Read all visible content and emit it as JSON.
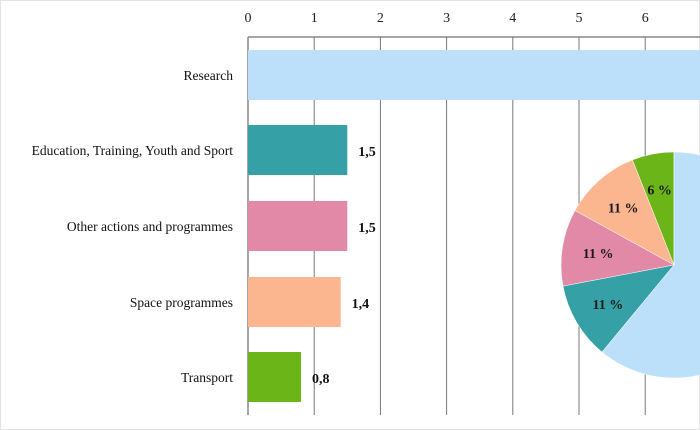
{
  "chart_data": {
    "type": "bar",
    "orientation": "horizontal",
    "title": "",
    "xlabel": "",
    "ylabel": "",
    "xlim": [
      0,
      6.8
    ],
    "x_ticks": [
      "0",
      "1",
      "2",
      "3",
      "4",
      "5",
      "6"
    ],
    "grid": true,
    "categories": [
      "Research",
      "Education, Training, Youth and Sport",
      "Other actions and programmes",
      "Space programmes",
      "Transport"
    ],
    "values": [
      null,
      1.5,
      1.5,
      1.4,
      0.8
    ],
    "value_labels": [
      "",
      "1,5",
      "1,5",
      "1,4",
      "0,8"
    ],
    "colors": [
      "#bde0fa",
      "#35a0a5",
      "#e289a8",
      "#fbb58f",
      "#6cb518"
    ],
    "inset_pie": {
      "type": "pie",
      "slices": [
        {
          "category": "Transport",
          "value": 6,
          "label": "6 %",
          "color": "#6cb518"
        },
        {
          "category": "Space programmes",
          "value": 11,
          "label": "11 %",
          "color": "#fbb58f"
        },
        {
          "category": "Other actions and programmes",
          "value": 11,
          "label": "11 %",
          "color": "#e289a8"
        },
        {
          "category": "Education, Training, Youth and Sport",
          "value": 11,
          "label": "11 %",
          "color": "#35a0a5"
        },
        {
          "category": "Research",
          "value": 61,
          "label": "",
          "color": "#bde0fa"
        }
      ]
    }
  }
}
